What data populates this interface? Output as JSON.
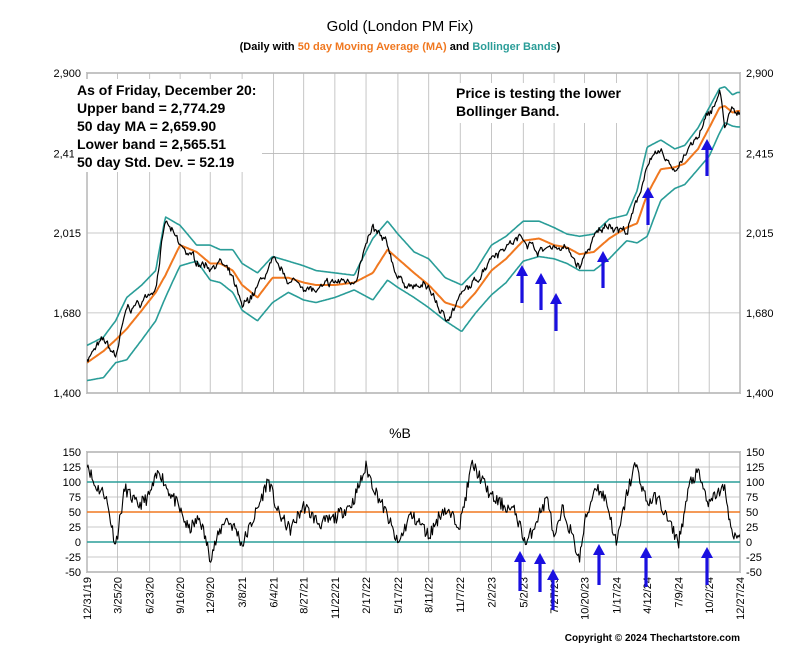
{
  "colors": {
    "background": "#ffffff",
    "price": "#000000",
    "moving_average": "#f07820",
    "bands": "#2a9d98",
    "arrow": "#1a10e0",
    "annotation_text": "#1a10e0",
    "grid": "#b8b8b8"
  },
  "header": {
    "title": "Gold (London PM Fix)",
    "subtitle_open": "(Daily with ",
    "subtitle_ma": "50 day Moving Average (MA)",
    "subtitle_and": " and ",
    "subtitle_bands": "Bollinger Bands",
    "subtitle_close": ")"
  },
  "annotations": {
    "stats_lines": [
      "As of Friday, December 20:",
      "Upper band = 2,774.29",
      "50 day MA = 2,659.90",
      "Lower band = 2,565.51",
      "50 day Std. Dev. = 52.19"
    ],
    "note_lines": [
      "Price is testing the lower",
      "Bollinger Band."
    ]
  },
  "footer": {
    "copyright": "Copyright © 2024 Thechartstore.com"
  },
  "chart_data": [
    {
      "type": "line",
      "title": "Gold (London PM Fix)",
      "y_scale": "log",
      "ylim": [
        1400,
        2900
      ],
      "y_ticks": [
        "1,400",
        "1,680",
        "2,015",
        "2,415",
        "2,900"
      ],
      "y_tick_values": [
        1400,
        1680,
        2015,
        2415,
        2900
      ],
      "grid": "horizontal and vertical",
      "x_dates": [
        "2019-12-31",
        "2020-02-15",
        "2020-03-20",
        "2020-04-20",
        "2020-06-01",
        "2020-07-10",
        "2020-08-06",
        "2020-09-16",
        "2020-11-01",
        "2020-12-09",
        "2021-01-06",
        "2021-02-10",
        "2021-03-08",
        "2021-04-20",
        "2021-06-01",
        "2021-07-15",
        "2021-08-27",
        "2021-09-30",
        "2021-11-22",
        "2022-01-15",
        "2022-03-08",
        "2022-04-18",
        "2022-05-17",
        "2022-07-01",
        "2022-08-11",
        "2022-09-26",
        "2022-11-11",
        "2022-12-20",
        "2023-02-02",
        "2023-03-15",
        "2023-05-02",
        "2023-06-15",
        "2023-07-27",
        "2023-09-01",
        "2023-10-06",
        "2023-11-15",
        "2023-12-28",
        "2024-02-15",
        "2024-03-15",
        "2024-04-12",
        "2024-05-20",
        "2024-06-28",
        "2024-07-26",
        "2024-09-01",
        "2024-10-02",
        "2024-10-31",
        "2024-11-15",
        "2024-12-06",
        "2024-12-20"
      ],
      "series": [
        {
          "name": "Gold",
          "values": [
            1515,
            1575,
            1520,
            1690,
            1720,
            1790,
            2065,
            1950,
            1890,
            1870,
            1890,
            1810,
            1690,
            1780,
            1880,
            1810,
            1790,
            1760,
            1800,
            1810,
            2030,
            1950,
            1820,
            1780,
            1780,
            1650,
            1750,
            1800,
            1920,
            1960,
            2000,
            1930,
            1960,
            1940,
            1860,
            1990,
            2060,
            2020,
            2160,
            2360,
            2410,
            2330,
            2410,
            2500,
            2640,
            2770,
            2570,
            2660,
            2620
          ]
        },
        {
          "name": "50 day Moving Average (MA)",
          "values": [
            1500,
            1540,
            1580,
            1620,
            1690,
            1760,
            1830,
            1960,
            1930,
            1880,
            1880,
            1850,
            1790,
            1740,
            1820,
            1820,
            1800,
            1790,
            1790,
            1800,
            1840,
            1940,
            1900,
            1840,
            1790,
            1720,
            1700,
            1760,
            1850,
            1900,
            1980,
            1990,
            1960,
            1950,
            1920,
            1930,
            1990,
            2040,
            2060,
            2200,
            2330,
            2340,
            2360,
            2440,
            2560,
            2680,
            2690,
            2650,
            2660
          ]
        },
        {
          "name": "Upper band",
          "values": [
            1560,
            1590,
            1650,
            1740,
            1790,
            1850,
            2090,
            2050,
            1960,
            1960,
            1940,
            1940,
            1880,
            1840,
            1910,
            1890,
            1870,
            1850,
            1840,
            1830,
            1990,
            2070,
            2010,
            1930,
            1900,
            1820,
            1790,
            1850,
            1960,
            2000,
            2070,
            2070,
            2040,
            2010,
            2000,
            2010,
            2080,
            2100,
            2220,
            2450,
            2490,
            2440,
            2460,
            2560,
            2680,
            2800,
            2810,
            2760,
            2775
          ]
        },
        {
          "name": "Lower band",
          "values": [
            1440,
            1450,
            1500,
            1510,
            1580,
            1650,
            1740,
            1870,
            1890,
            1810,
            1800,
            1760,
            1690,
            1650,
            1720,
            1760,
            1730,
            1720,
            1740,
            1770,
            1730,
            1810,
            1780,
            1740,
            1700,
            1650,
            1610,
            1680,
            1750,
            1800,
            1890,
            1910,
            1900,
            1880,
            1850,
            1850,
            1900,
            1980,
            1970,
            2000,
            2170,
            2230,
            2250,
            2330,
            2400,
            2530,
            2590,
            2570,
            2565
          ]
        }
      ]
    },
    {
      "type": "line",
      "title": "%B",
      "ylim": [
        -50,
        150
      ],
      "y_ticks": [
        "150",
        "125",
        "100",
        "75",
        "50",
        "25",
        "0",
        "-25",
        "-50"
      ],
      "y_tick_values": [
        150,
        125,
        100,
        75,
        50,
        25,
        0,
        -25,
        -50
      ],
      "reference_lines": [
        100,
        50,
        0
      ],
      "x_ticks": [
        "12/31/19",
        "3/25/20",
        "6/23/20",
        "9/16/20",
        "12/9/20",
        "3/8/21",
        "6/4/21",
        "8/27/21",
        "11/22/21",
        "2/17/22",
        "5/17/22",
        "8/11/22",
        "11/7/22",
        "2/2/23",
        "5/2/23",
        "7/27/23",
        "10/20/23",
        "1/17/24",
        "4/12/24",
        "7/9/24",
        "10/2/24",
        "12/27/24"
      ],
      "x_tick_dates": [
        "2019-12-31",
        "2020-03-25",
        "2020-06-23",
        "2020-09-16",
        "2020-12-09",
        "2021-03-08",
        "2021-06-04",
        "2021-08-27",
        "2021-11-22",
        "2022-02-17",
        "2022-05-17",
        "2022-08-11",
        "2022-11-07",
        "2023-02-02",
        "2023-05-02",
        "2023-07-27",
        "2023-10-20",
        "2024-01-17",
        "2024-04-12",
        "2024-07-09",
        "2024-10-02",
        "2024-12-27"
      ],
      "x_dates": [
        "2019-12-31",
        "2020-01-20",
        "2020-02-20",
        "2020-03-20",
        "2020-04-15",
        "2020-05-20",
        "2020-06-20",
        "2020-07-20",
        "2020-08-06",
        "2020-09-10",
        "2020-10-10",
        "2020-11-10",
        "2020-12-09",
        "2021-01-20",
        "2021-02-20",
        "2021-03-08",
        "2021-04-20",
        "2021-05-20",
        "2021-06-15",
        "2021-07-20",
        "2021-08-27",
        "2021-10-10",
        "2021-11-22",
        "2022-01-10",
        "2022-02-17",
        "2022-03-08",
        "2022-04-20",
        "2022-05-17",
        "2022-06-20",
        "2022-07-20",
        "2022-08-11",
        "2022-09-20",
        "2022-11-07",
        "2022-12-10",
        "2023-01-10",
        "2023-02-02",
        "2023-03-10",
        "2023-04-10",
        "2023-05-10",
        "2023-06-10",
        "2023-07-10",
        "2023-07-27",
        "2023-08-20",
        "2023-09-10",
        "2023-10-06",
        "2023-10-20",
        "2023-11-20",
        "2023-12-20",
        "2024-01-17",
        "2024-02-15",
        "2024-03-10",
        "2024-04-12",
        "2024-05-10",
        "2024-06-10",
        "2024-07-09",
        "2024-08-10",
        "2024-09-01",
        "2024-10-02",
        "2024-10-20",
        "2024-11-15",
        "2024-12-06",
        "2024-12-20"
      ],
      "series": [
        {
          "name": "%B",
          "values": [
            135,
            95,
            80,
            -5,
            90,
            60,
            75,
            120,
            95,
            60,
            20,
            40,
            -25,
            40,
            20,
            -5,
            55,
            105,
            50,
            20,
            60,
            30,
            40,
            65,
            125,
            95,
            40,
            -5,
            45,
            30,
            10,
            55,
            30,
            130,
            100,
            75,
            60,
            50,
            -5,
            40,
            75,
            0,
            55,
            20,
            -30,
            30,
            95,
            70,
            -5,
            80,
            130,
            65,
            75,
            35,
            0,
            100,
            115,
            60,
            80,
            90,
            5,
            10
          ]
        }
      ]
    }
  ]
}
